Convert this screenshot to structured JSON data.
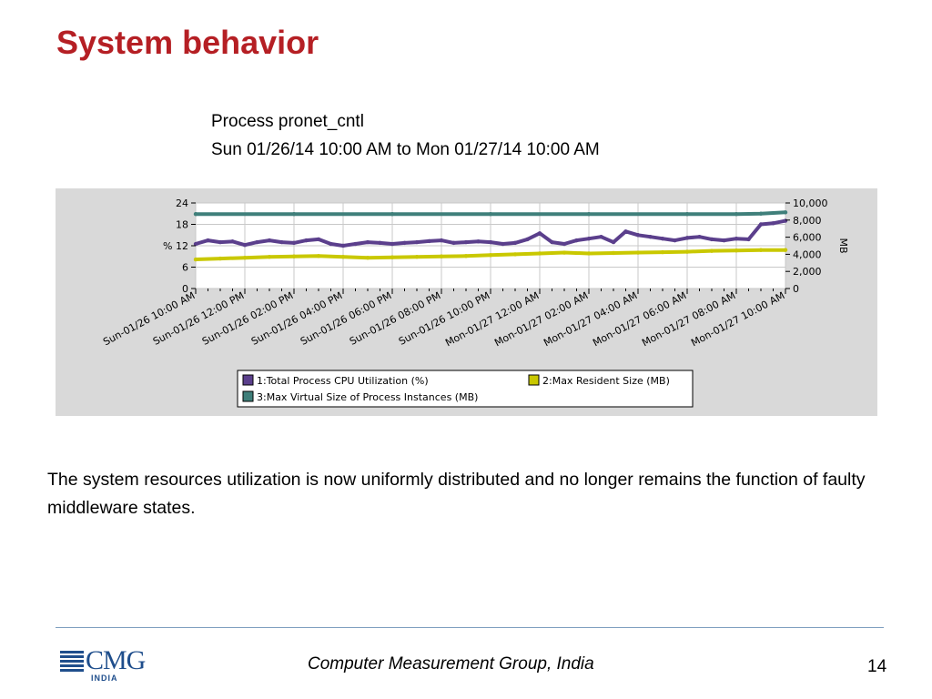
{
  "slide": {
    "title": "System behavior",
    "caption_line1": "Process pronet_cntl",
    "caption_line2": "Sun 01/26/14 10:00 AM to Mon 01/27/14 10:00 AM",
    "body_text": "The system resources utilization is now uniformly distributed and no longer remains the function of faulty middleware states.",
    "footer_text": "Computer Measurement Group, India",
    "page_number": "14",
    "logo_text": "CMG",
    "logo_subtext": "INDIA"
  },
  "colors": {
    "title": "#b51f24",
    "panel": "#d9d9d9",
    "cpu": "#5b3f8c",
    "resident": "#c9c800",
    "virtual": "#3f7f7a",
    "logo": "#1f4e8c"
  },
  "chart_data": {
    "type": "line",
    "x_tick_labels": [
      "Sun-01/26 10:00 AM",
      "Sun-01/26 12:00 PM",
      "Sun-01/26 02:00 PM",
      "Sun-01/26 04:00 PM",
      "Sun-01/26 06:00 PM",
      "Sun-01/26 08:00 PM",
      "Sun-01/26 10:00 PM",
      "Mon-01/27 12:00 AM",
      "Mon-01/27 02:00 AM",
      "Mon-01/27 04:00 AM",
      "Mon-01/27 06:00 AM",
      "Mon-01/27 08:00 AM",
      "Mon-01/27 10:00 AM"
    ],
    "x_range_hours": [
      0,
      24
    ],
    "y_left": {
      "label": "%",
      "ylim": [
        0,
        24
      ],
      "ticks": [
        "0",
        "6",
        "12",
        "18",
        "24"
      ]
    },
    "y_right": {
      "label": "MB",
      "ylim": [
        0,
        10000
      ],
      "ticks": [
        "0",
        "2,000",
        "4,000",
        "6,000",
        "8,000",
        "10,000"
      ]
    },
    "grid": true,
    "legend_position": "bottom",
    "series": [
      {
        "name": "1:Total Process CPU Utilization (%)",
        "axis": "left",
        "color": "#5b3f8c",
        "points": [
          [
            0,
            12.5
          ],
          [
            0.5,
            13.5
          ],
          [
            1,
            13
          ],
          [
            1.5,
            13.2
          ],
          [
            2,
            12.2
          ],
          [
            2.5,
            13
          ],
          [
            3,
            13.5
          ],
          [
            3.5,
            13
          ],
          [
            4,
            12.8
          ],
          [
            4.5,
            13.5
          ],
          [
            5,
            13.8
          ],
          [
            5.5,
            12.5
          ],
          [
            6,
            12
          ],
          [
            6.5,
            12.5
          ],
          [
            7,
            13
          ],
          [
            7.5,
            12.8
          ],
          [
            8,
            12.5
          ],
          [
            8.5,
            12.8
          ],
          [
            9,
            13
          ],
          [
            9.5,
            13.3
          ],
          [
            10,
            13.5
          ],
          [
            10.5,
            12.8
          ],
          [
            11,
            13
          ],
          [
            11.5,
            13.2
          ],
          [
            12,
            13
          ],
          [
            12.5,
            12.5
          ],
          [
            13,
            12.8
          ],
          [
            13.5,
            13.8
          ],
          [
            14,
            15.5
          ],
          [
            14.5,
            13
          ],
          [
            15,
            12.5
          ],
          [
            15.5,
            13.5
          ],
          [
            16,
            14
          ],
          [
            16.5,
            14.5
          ],
          [
            17,
            13
          ],
          [
            17.5,
            16
          ],
          [
            18,
            15
          ],
          [
            18.5,
            14.5
          ],
          [
            19,
            14
          ],
          [
            19.5,
            13.5
          ],
          [
            20,
            14.2
          ],
          [
            20.5,
            14.5
          ],
          [
            21,
            13.8
          ],
          [
            21.5,
            13.5
          ],
          [
            22,
            14
          ],
          [
            22.5,
            13.8
          ],
          [
            23,
            18
          ],
          [
            23.5,
            18.3
          ],
          [
            24,
            19
          ]
        ]
      },
      {
        "name": "2:Max Resident Size (MB)",
        "axis": "right",
        "color": "#c9c800",
        "points": [
          [
            0,
            3400
          ],
          [
            1,
            3500
          ],
          [
            2,
            3600
          ],
          [
            3,
            3700
          ],
          [
            4,
            3750
          ],
          [
            5,
            3800
          ],
          [
            6,
            3700
          ],
          [
            7,
            3600
          ],
          [
            8,
            3650
          ],
          [
            9,
            3700
          ],
          [
            10,
            3750
          ],
          [
            11,
            3800
          ],
          [
            12,
            3900
          ],
          [
            13,
            4000
          ],
          [
            14,
            4100
          ],
          [
            15,
            4200
          ],
          [
            16,
            4100
          ],
          [
            17,
            4150
          ],
          [
            18,
            4200
          ],
          [
            19,
            4250
          ],
          [
            20,
            4300
          ],
          [
            21,
            4400
          ],
          [
            22,
            4450
          ],
          [
            23,
            4500
          ],
          [
            24,
            4500
          ]
        ]
      },
      {
        "name": "3:Max Virtual Size of Process Instances (MB)",
        "axis": "right",
        "color": "#3f7f7a",
        "points": [
          [
            0,
            8700
          ],
          [
            4,
            8700
          ],
          [
            8,
            8700
          ],
          [
            12,
            8700
          ],
          [
            16,
            8700
          ],
          [
            20,
            8700
          ],
          [
            22,
            8700
          ],
          [
            23,
            8750
          ],
          [
            24,
            8900
          ]
        ]
      }
    ]
  }
}
